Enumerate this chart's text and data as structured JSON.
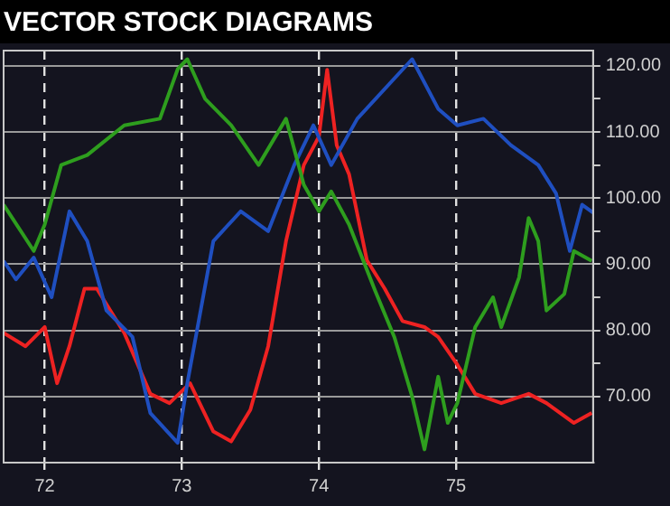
{
  "chart_data": {
    "type": "line",
    "title": "VECTOR STOCK DIAGRAMS",
    "xlim": [
      71.7,
      76.0
    ],
    "xticks": [
      72,
      73,
      74,
      75
    ],
    "ylim": [
      60,
      122.3
    ],
    "yticks": [
      {
        "value": 70,
        "label": "70.00"
      },
      {
        "value": 75,
        "label": null
      },
      {
        "value": 80,
        "label": "80.00"
      },
      {
        "value": 85,
        "label": null
      },
      {
        "value": 90,
        "label": "90.00"
      },
      {
        "value": 95,
        "label": null
      },
      {
        "value": 100,
        "label": "100.00"
      },
      {
        "value": 105,
        "label": null
      },
      {
        "value": 110,
        "label": "110.00"
      },
      {
        "value": 115,
        "label": null
      },
      {
        "value": 120,
        "label": "120.00"
      }
    ],
    "grid": true,
    "legend": false,
    "marker": "none",
    "line_style": "solid",
    "series": [
      {
        "color": "#2e9e1e",
        "x": [
          71.7,
          71.92,
          72.0,
          72.12,
          72.31,
          72.58,
          72.84,
          72.97,
          73.04,
          73.17,
          73.36,
          73.56,
          73.76,
          73.89,
          74.0,
          74.09,
          74.22,
          74.41,
          74.55,
          74.68,
          74.77,
          74.87,
          74.94,
          75.01,
          75.14,
          75.27,
          75.33,
          75.46,
          75.53,
          75.6,
          75.66,
          75.79,
          75.86,
          75.99
        ],
        "values": [
          99,
          92,
          96,
          105,
          106.5,
          111,
          112,
          119.5,
          121,
          115,
          111,
          105,
          112,
          102,
          98,
          101,
          96,
          86,
          79,
          70,
          62,
          73,
          66,
          69,
          80.5,
          85,
          80.5,
          88,
          97,
          93.5,
          83,
          85.5,
          92,
          90.5
        ]
      },
      {
        "color": "#1f4fc0",
        "x": [
          71.7,
          71.79,
          71.92,
          72.05,
          72.18,
          72.31,
          72.45,
          72.64,
          72.77,
          72.97,
          73.04,
          73.23,
          73.43,
          73.63,
          73.82,
          73.96,
          74.09,
          74.28,
          74.68,
          74.87,
          75.01,
          75.2,
          75.4,
          75.6,
          75.73,
          75.83,
          75.92,
          76.0
        ],
        "values": [
          90.5,
          87.7,
          91,
          85,
          98,
          93.5,
          83,
          79,
          67.5,
          63,
          72,
          93.5,
          98,
          95,
          105,
          111,
          105,
          112,
          121,
          113.5,
          111,
          112,
          108,
          105,
          100.7,
          92,
          99,
          97.8
        ]
      },
      {
        "color": "#ee2222",
        "x": [
          71.7,
          71.86,
          72.0,
          72.09,
          72.18,
          72.29,
          72.38,
          72.58,
          72.77,
          72.91,
          73.06,
          73.23,
          73.36,
          73.5,
          73.63,
          73.76,
          73.89,
          74.0,
          74.06,
          74.13,
          74.22,
          74.35,
          74.48,
          74.61,
          74.77,
          74.87,
          75.01,
          75.14,
          75.33,
          75.53,
          75.66,
          75.86,
          75.99
        ],
        "values": [
          79.6,
          77.6,
          80.5,
          72,
          77.6,
          86.3,
          86.3,
          79.6,
          70.4,
          69,
          72,
          64.7,
          63.2,
          68,
          77.6,
          93.5,
          105,
          109.3,
          119.4,
          108,
          103.6,
          90.6,
          86.3,
          81.4,
          80.5,
          79,
          74.8,
          70.4,
          69,
          70.4,
          69,
          66,
          67.5
        ]
      }
    ]
  }
}
